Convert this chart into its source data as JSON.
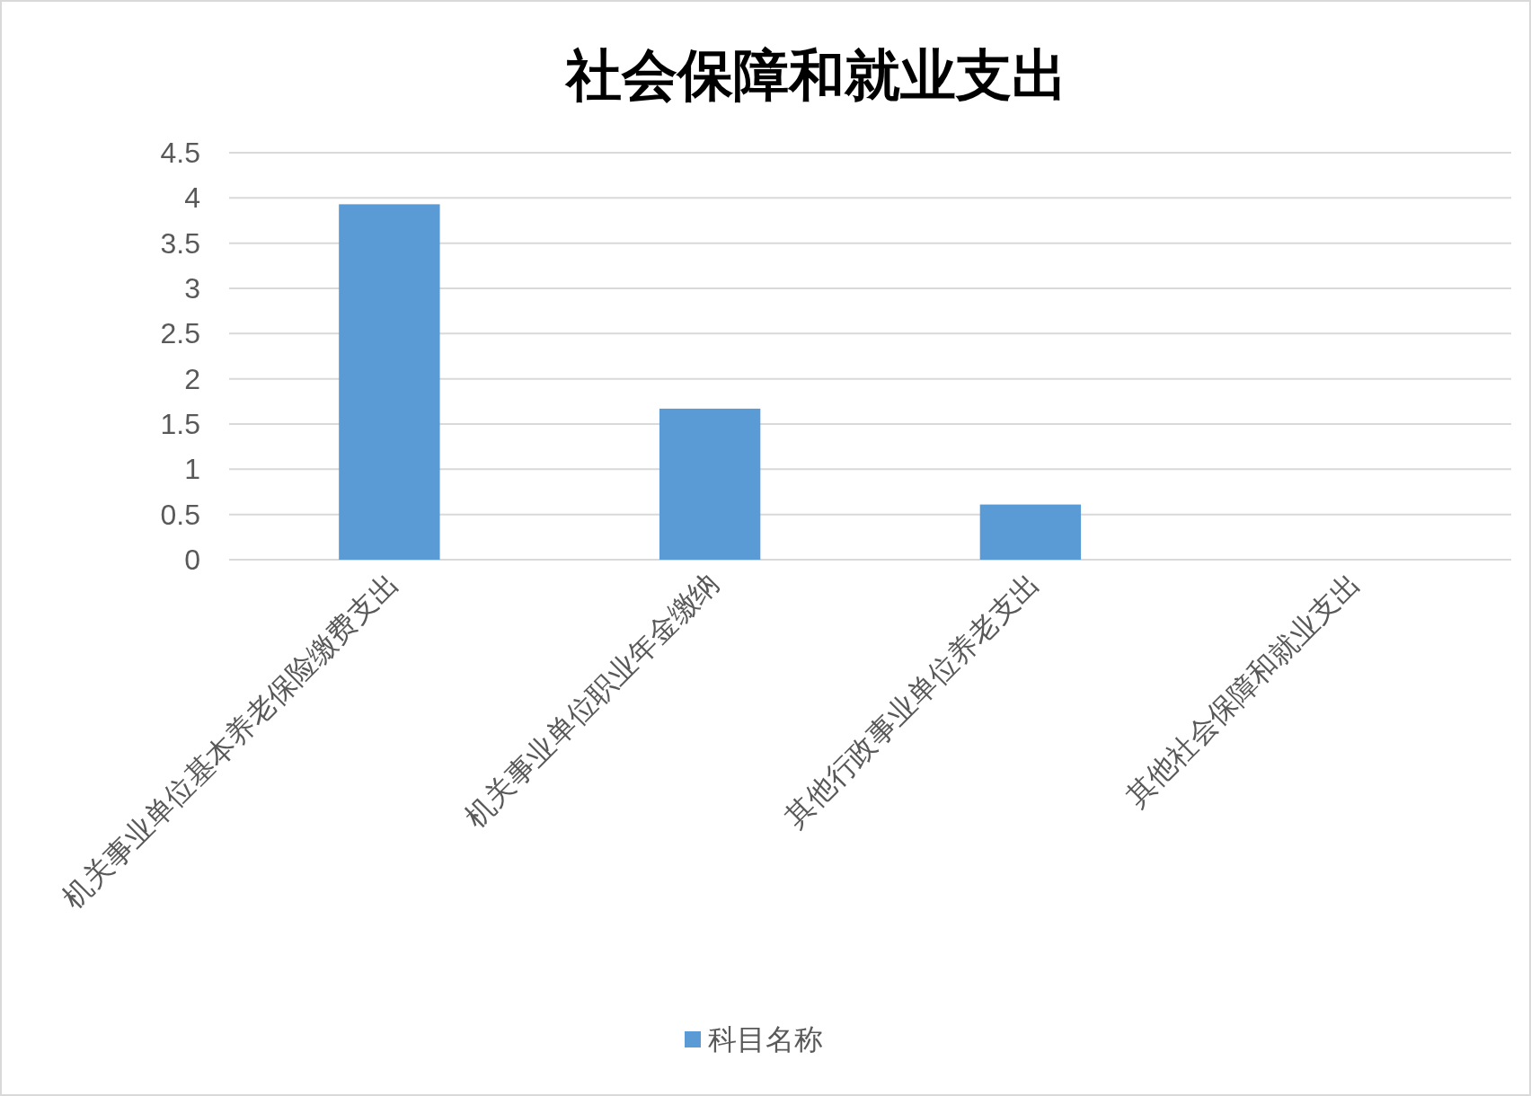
{
  "chart_data": {
    "type": "bar",
    "title": "社会保障和就业支出",
    "categories": [
      "机关事业单位基本养老保险缴费支出",
      "机关事业单位职业年金缴纳",
      "其他行政事业单位养老支出",
      "其他社会保障和就业支出"
    ],
    "series": [
      {
        "name": "科目名称",
        "color": "#5b9bd5",
        "values": [
          3.93,
          1.67,
          0.61,
          0
        ]
      }
    ],
    "ylim": [
      0,
      4.5
    ],
    "yticks": [
      0,
      0.5,
      1,
      1.5,
      2,
      2.5,
      3,
      3.5,
      4,
      4.5
    ],
    "grid": "y",
    "legend": "bottom"
  }
}
